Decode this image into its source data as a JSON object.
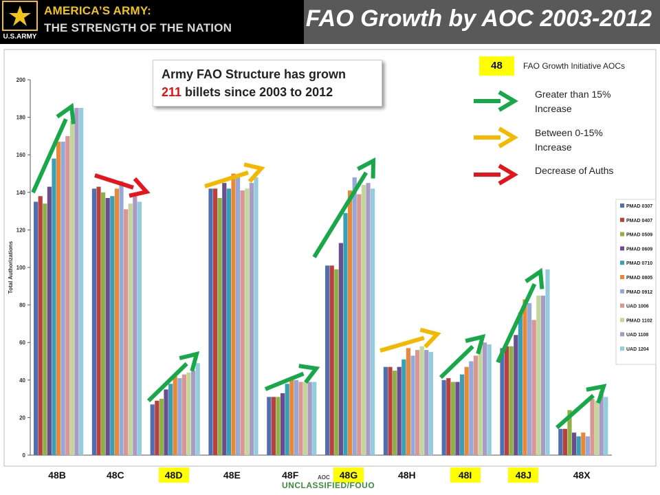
{
  "header": {
    "tagline_line1": "AMERICA’S ARMY:",
    "tagline_line2": "THE STRENGTH OF THE NATION",
    "logo_text": "U.S.ARMY",
    "title": "FAO Growth by AOC 2003-2012"
  },
  "callout": {
    "line1": "Army FAO Structure has grown",
    "number": "211",
    "line2_rest": " billets since 2003 to 2012"
  },
  "key": {
    "badge": "48",
    "badge_label": "FAO Growth Initiative AOCs",
    "green_label_1": "Greater than 15%",
    "green_label_2": "Increase",
    "yellow_label_1": "Between 0-15%",
    "yellow_label_2": "Increase",
    "red_label": "Decrease of Auths"
  },
  "footer": {
    "classification": "UNCLASSIFIED/FOUO"
  },
  "colors": {
    "green_arrow": "#18a84a",
    "yellow_arrow": "#f5b800",
    "red_arrow": "#e4151c",
    "highlight": "#ffff00"
  },
  "chart_data": {
    "type": "bar",
    "ylabel": "Total Authorizations",
    "xlabel": "AOC",
    "ylim": [
      0,
      200
    ],
    "yticks": [
      "0",
      "20",
      "40",
      "60",
      "80",
      "100",
      "120",
      "140",
      "160",
      "180",
      "200"
    ],
    "categories": [
      "48B",
      "48C",
      "48D",
      "48E",
      "48F",
      "48G",
      "48H",
      "48I",
      "48J",
      "48X"
    ],
    "highlighted_categories": [
      "48D",
      "48G",
      "48I",
      "48J"
    ],
    "series": [
      {
        "name": "PMAD 0307",
        "color": "#4f6fb0",
        "values": [
          135,
          142,
          27,
          142,
          31,
          101,
          47,
          40,
          57,
          14
        ]
      },
      {
        "name": "PMAD 0407",
        "color": "#b8403e",
        "values": [
          138,
          143,
          29,
          142,
          31,
          101,
          47,
          41,
          58,
          14
        ]
      },
      {
        "name": "PMAD 0509",
        "color": "#90b048",
        "values": [
          134,
          140,
          30,
          137,
          31,
          99,
          45,
          39,
          58,
          24
        ]
      },
      {
        "name": "PMAD 0609",
        "color": "#6a4d8f",
        "values": [
          143,
          137,
          35,
          145,
          33,
          113,
          47,
          39,
          64,
          12
        ]
      },
      {
        "name": "PMAD 0710",
        "color": "#3a9fb5",
        "values": [
          158,
          138,
          38,
          142,
          38,
          129,
          51,
          43,
          76,
          10
        ]
      },
      {
        "name": "PMAD 0805",
        "color": "#e8883a",
        "values": [
          167,
          142,
          42,
          150,
          40,
          141,
          57,
          47,
          83,
          12
        ]
      },
      {
        "name": "PMAD 0912",
        "color": "#94a9d8",
        "values": [
          167,
          146,
          41,
          148,
          40,
          148,
          53,
          50,
          81,
          10
        ]
      },
      {
        "name": "UAD 1006",
        "color": "#d99694",
        "values": [
          170,
          131,
          43,
          141,
          39,
          139,
          56,
          53,
          72,
          30
        ]
      },
      {
        "name": "PMAD 1102",
        "color": "#c3d69b",
        "values": [
          178,
          134,
          44,
          142,
          39,
          144,
          58,
          58,
          85,
          29
        ]
      },
      {
        "name": "UAD 1108",
        "color": "#a99bc6",
        "values": [
          185,
          138,
          45,
          145,
          39,
          145,
          56,
          60,
          85,
          34
        ]
      },
      {
        "name": "UAD 1204",
        "color": "#93cddd",
        "values": [
          185,
          135,
          49,
          148,
          39,
          142,
          55,
          59,
          99,
          31
        ]
      }
    ]
  }
}
